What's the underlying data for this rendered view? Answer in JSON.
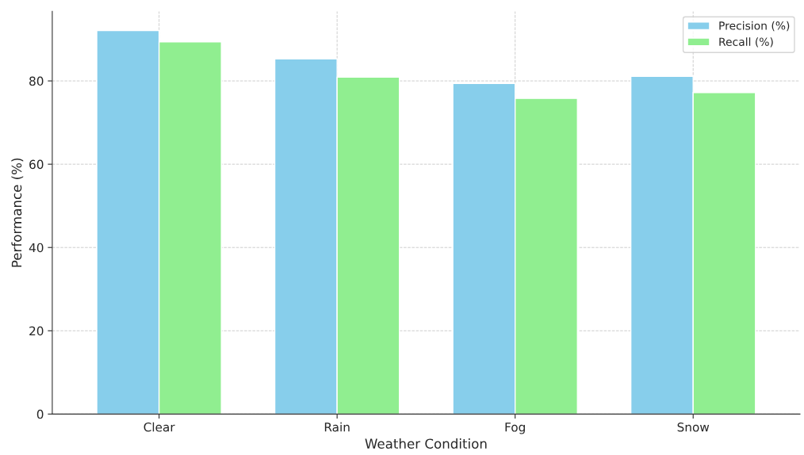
{
  "chart_data": {
    "type": "bar",
    "xlabel": "Weather Condition",
    "ylabel": "Performance (%)",
    "categories": [
      "Clear",
      "Rain",
      "Fog",
      "Snow"
    ],
    "series": [
      {
        "name": "Precision (%)",
        "color": "#87ceeb",
        "values": [
          92.1,
          85.3,
          79.4,
          81.1
        ]
      },
      {
        "name": "Recall (%)",
        "color": "#90ee90",
        "values": [
          89.4,
          80.9,
          75.8,
          77.2
        ]
      }
    ],
    "ylim": [
      0,
      96.7
    ],
    "yticks": [
      0,
      20,
      40,
      60,
      80
    ],
    "grid": true,
    "legend": "top right"
  }
}
